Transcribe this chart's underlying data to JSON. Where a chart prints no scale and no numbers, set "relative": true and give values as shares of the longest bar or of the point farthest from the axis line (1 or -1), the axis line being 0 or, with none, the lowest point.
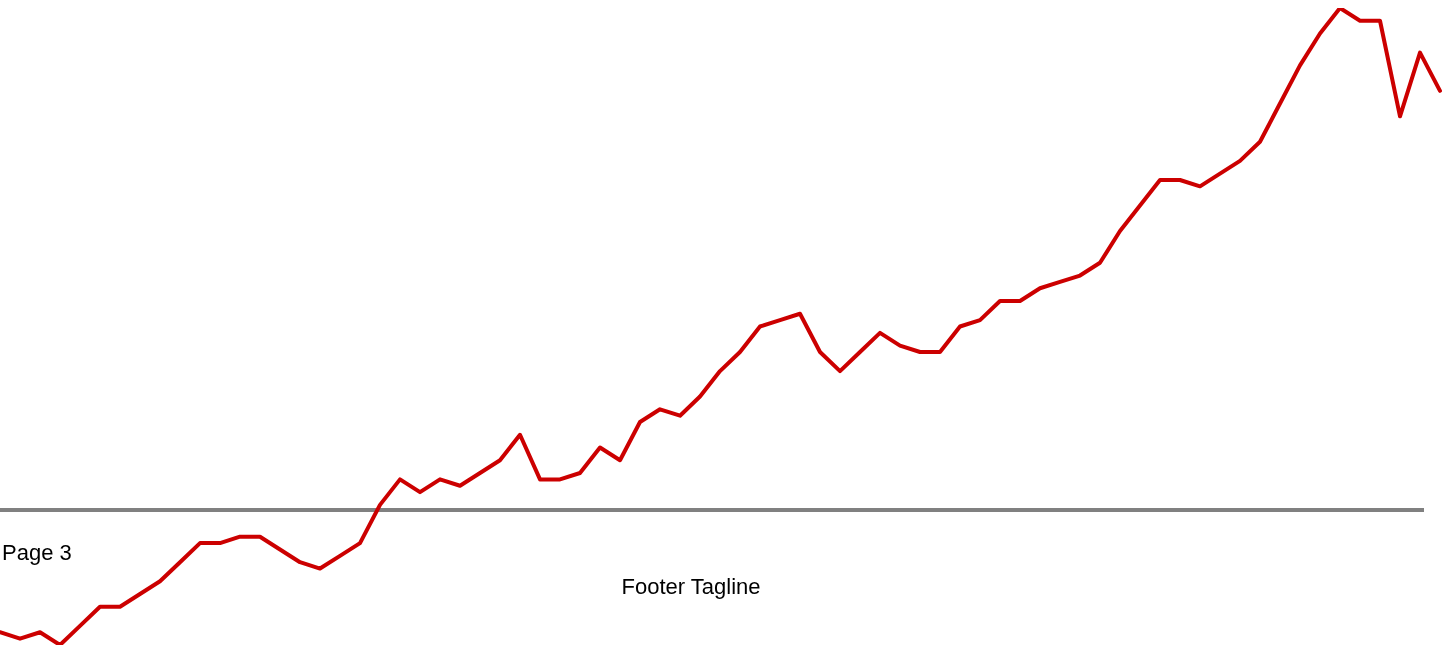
{
  "chart_data": {
    "type": "line",
    "relative": true,
    "color": "#cc0000",
    "marker": "none",
    "line_style": "solid",
    "legend": false,
    "categories": [
      null,
      null,
      null,
      null,
      null,
      null,
      null,
      null,
      null,
      null,
      null,
      null,
      null,
      null,
      null,
      null,
      null,
      null,
      null,
      null,
      null,
      null,
      null,
      null,
      null,
      null,
      null,
      null,
      null,
      null,
      null,
      null,
      null,
      null,
      null,
      null,
      null,
      null,
      null,
      null,
      null,
      null,
      null,
      null,
      null,
      null,
      null,
      null,
      null,
      null,
      null,
      null,
      null,
      null,
      null,
      null,
      null,
      null,
      null,
      null,
      null,
      null,
      null,
      null,
      null,
      null,
      null,
      null,
      null,
      null,
      null,
      null,
      null
    ],
    "values": [
      0.02,
      0.01,
      0.02,
      0,
      0.03,
      0.06,
      0.06,
      0.08,
      0.1,
      0.13,
      0.16,
      0.16,
      0.17,
      0.17,
      0.15,
      0.13,
      0.12,
      0.14,
      0.16,
      0.22,
      0.26,
      0.24,
      0.26,
      0.25,
      0.27,
      0.29,
      0.33,
      0.26,
      0.26,
      0.27,
      0.31,
      0.29,
      0.35,
      0.37,
      0.36,
      0.39,
      0.43,
      0.46,
      0.5,
      0.51,
      0.52,
      0.46,
      0.43,
      0.46,
      0.49,
      0.47,
      0.46,
      0.46,
      0.5,
      0.51,
      0.54,
      0.54,
      0.56,
      0.57,
      0.58,
      0.6,
      0.65,
      0.69,
      0.73,
      0.73,
      0.72,
      0.74,
      0.76,
      0.79,
      0.85,
      0.91,
      0.96,
      1,
      0.98,
      0.98,
      0.83,
      0.93,
      0.87
    ],
    "annotations": [
      "Page 3",
      "Footer Tagline"
    ]
  }
}
